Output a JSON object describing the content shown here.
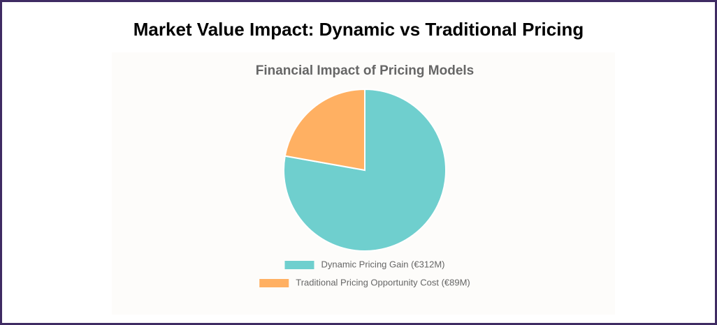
{
  "header": {
    "title": "Market Value Impact: Dynamic vs Traditional Pricing"
  },
  "chart_data": {
    "type": "pie",
    "title": "Financial Impact of Pricing Models",
    "categories": [
      "Dynamic Pricing Gain (€312M)",
      "Traditional Pricing Opportunity Cost (€89M)"
    ],
    "values": [
      312,
      89
    ],
    "colors": [
      "#6fcfce",
      "#ffb062"
    ]
  }
}
